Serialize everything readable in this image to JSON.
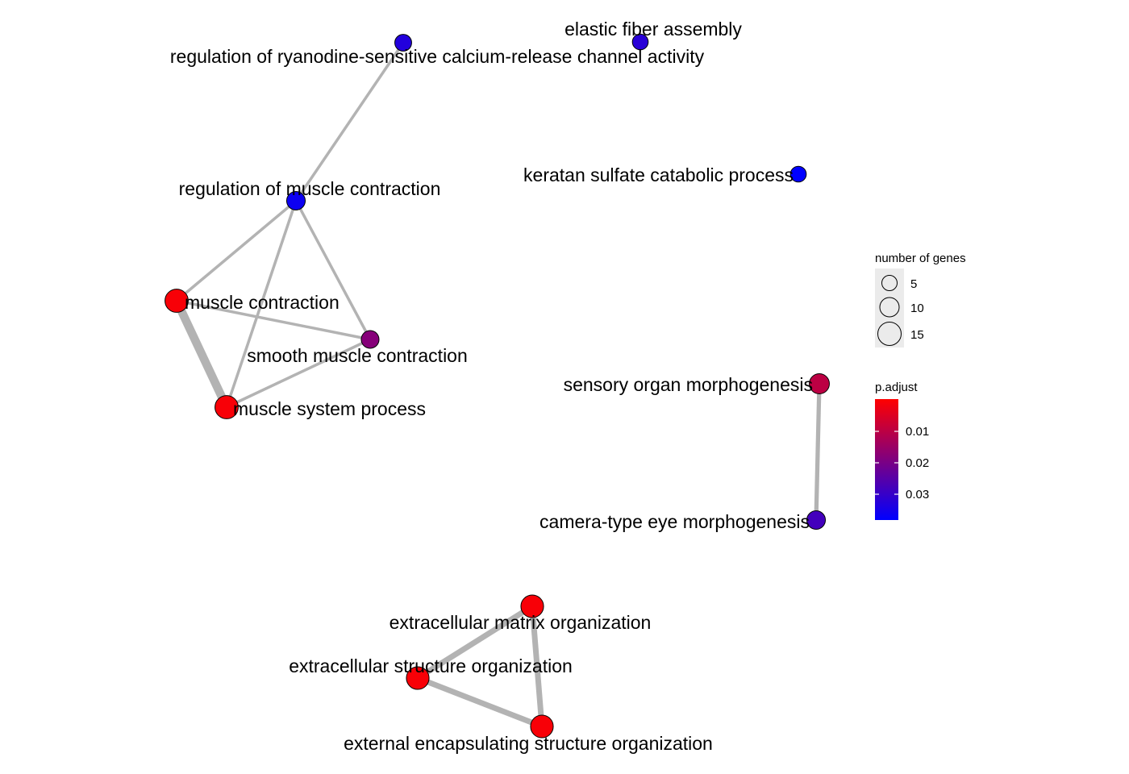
{
  "colors": {
    "edge": "#b3b3b3",
    "node_stroke": "#000000",
    "legend_bg": "#ebebeb",
    "scale_high": "#ff0000",
    "scale_low": "#0000ff"
  },
  "nodes": [
    {
      "id": "ryr",
      "label": "regulation of ryanodine-sensitive calcium-release channel activity",
      "size": 5,
      "p_adjust": 0.033
    },
    {
      "id": "elastic",
      "label": "elastic fiber assembly",
      "size": 4,
      "p_adjust": 0.032
    },
    {
      "id": "keratan",
      "label": "keratan sulfate catabolic process",
      "size": 4,
      "p_adjust": 0.038
    },
    {
      "id": "regmc",
      "label": "regulation of muscle contraction",
      "size": 7,
      "p_adjust": 0.036
    },
    {
      "id": "mc",
      "label": "muscle contraction",
      "size": 14,
      "p_adjust": 0.001
    },
    {
      "id": "smc",
      "label": "smooth muscle contraction",
      "size": 6,
      "p_adjust": 0.018
    },
    {
      "id": "msp",
      "label": "muscle system process",
      "size": 14,
      "p_adjust": 0.001
    },
    {
      "id": "sensory",
      "label": "sensory organ morphogenesis",
      "size": 9,
      "p_adjust": 0.01
    },
    {
      "id": "camera",
      "label": "camera-type eye morphogenesis",
      "size": 7,
      "p_adjust": 0.028
    },
    {
      "id": "ecm",
      "label": "extracellular matrix organization",
      "size": 13,
      "p_adjust": 0.001
    },
    {
      "id": "ecs",
      "label": "extracellular structure organization",
      "size": 13,
      "p_adjust": 0.001
    },
    {
      "id": "ees",
      "label": "external encapsulating structure organization",
      "size": 13,
      "p_adjust": 0.001
    }
  ],
  "edges": [
    {
      "source": "ryr",
      "target": "regmc",
      "weight": 1
    },
    {
      "source": "regmc",
      "target": "mc",
      "weight": 1
    },
    {
      "source": "regmc",
      "target": "msp",
      "weight": 1
    },
    {
      "source": "regmc",
      "target": "smc",
      "weight": 1
    },
    {
      "source": "mc",
      "target": "smc",
      "weight": 1
    },
    {
      "source": "mc",
      "target": "msp",
      "weight": 3
    },
    {
      "source": "smc",
      "target": "msp",
      "weight": 1
    },
    {
      "source": "sensory",
      "target": "camera",
      "weight": 1.5
    },
    {
      "source": "ecm",
      "target": "ecs",
      "weight": 2
    },
    {
      "source": "ecm",
      "target": "ees",
      "weight": 2
    },
    {
      "source": "ecs",
      "target": "ees",
      "weight": 2
    }
  ],
  "legend": {
    "size_title": "number of genes",
    "size_breaks": [
      {
        "value": 5,
        "label": "5"
      },
      {
        "value": 10,
        "label": "10"
      },
      {
        "value": 15,
        "label": "15"
      }
    ],
    "color_title": "p.adjust",
    "color_breaks": [
      {
        "value": 0.01,
        "label": "0.01"
      },
      {
        "value": 0.02,
        "label": "0.02"
      },
      {
        "value": 0.03,
        "label": "0.03"
      }
    ]
  }
}
